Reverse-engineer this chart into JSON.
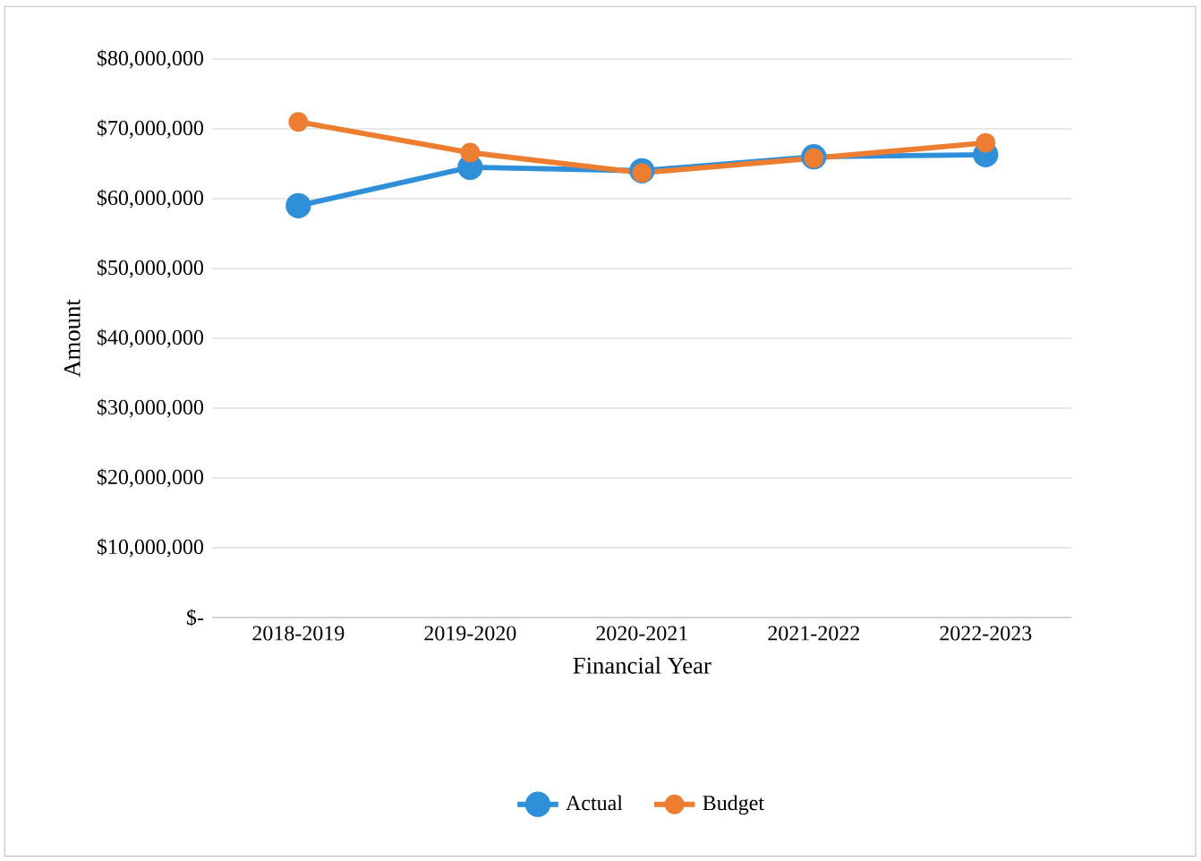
{
  "chart_data": {
    "type": "line",
    "xlabel": "Financial Year",
    "ylabel": "Amount",
    "categories": [
      "2018-2019",
      "2019-2020",
      "2020-2021",
      "2021-2022",
      "2022-2023"
    ],
    "series": [
      {
        "name": "Actual",
        "color": "#2f8fd8",
        "values": [
          59000000,
          64500000,
          64000000,
          66000000,
          66300000
        ]
      },
      {
        "name": "Budget",
        "color": "#ed7d31",
        "values": [
          71000000,
          66600000,
          63700000,
          65800000,
          68000000
        ]
      }
    ],
    "ylim": [
      0,
      80000000
    ],
    "yticks": [
      {
        "value": 0,
        "label": "$-"
      },
      {
        "value": 10000000,
        "label": "$10,000,000"
      },
      {
        "value": 20000000,
        "label": "$20,000,000"
      },
      {
        "value": 30000000,
        "label": "$30,000,000"
      },
      {
        "value": 40000000,
        "label": "$40,000,000"
      },
      {
        "value": 50000000,
        "label": "$50,000,000"
      },
      {
        "value": 60000000,
        "label": "$60,000,000"
      },
      {
        "value": 70000000,
        "label": "$70,000,000"
      },
      {
        "value": 80000000,
        "label": "$80,000,000"
      }
    ],
    "grid": "y",
    "legend": "bottom",
    "marker": "circle",
    "line_style": "solid"
  }
}
